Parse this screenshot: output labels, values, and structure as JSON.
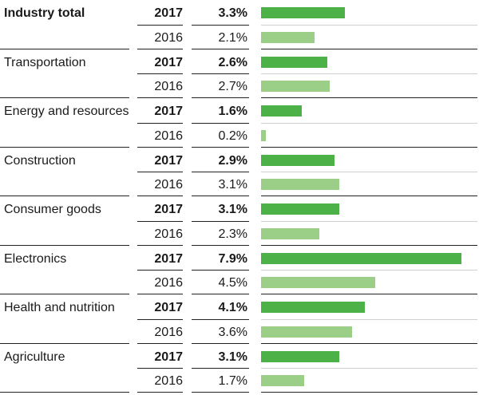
{
  "chart_data": {
    "type": "bar",
    "orientation": "horizontal",
    "title": "",
    "xlim": [
      0,
      8
    ],
    "rows": [
      {
        "category": "Industry total",
        "bold_category": true,
        "current": {
          "year": "2017",
          "label": "3.3%",
          "value": 3.3
        },
        "previous": {
          "year": "2016",
          "label": "2.1%",
          "value": 2.1
        }
      },
      {
        "category": "Transportation",
        "bold_category": false,
        "current": {
          "year": "2017",
          "label": "2.6%",
          "value": 2.6
        },
        "previous": {
          "year": "2016",
          "label": "2.7%",
          "value": 2.7
        }
      },
      {
        "category": "Energy and resources",
        "bold_category": false,
        "current": {
          "year": "2017",
          "label": "1.6%",
          "value": 1.6
        },
        "previous": {
          "year": "2016",
          "label": "0.2%",
          "value": 0.2
        }
      },
      {
        "category": "Construction",
        "bold_category": false,
        "current": {
          "year": "2017",
          "label": "2.9%",
          "value": 2.9
        },
        "previous": {
          "year": "2016",
          "label": "3.1%",
          "value": 3.1
        }
      },
      {
        "category": "Consumer goods",
        "bold_category": false,
        "current": {
          "year": "2017",
          "label": "3.1%",
          "value": 3.1
        },
        "previous": {
          "year": "2016",
          "label": "2.3%",
          "value": 2.3
        }
      },
      {
        "category": "Electronics",
        "bold_category": false,
        "current": {
          "year": "2017",
          "label": "7.9%",
          "value": 7.9
        },
        "previous": {
          "year": "2016",
          "label": "4.5%",
          "value": 4.5
        }
      },
      {
        "category": "Health and nutrition",
        "bold_category": false,
        "current": {
          "year": "2017",
          "label": "4.1%",
          "value": 4.1
        },
        "previous": {
          "year": "2016",
          "label": "3.6%",
          "value": 3.6
        }
      },
      {
        "category": "Agriculture",
        "bold_category": false,
        "current": {
          "year": "2017",
          "label": "3.1%",
          "value": 3.1
        },
        "previous": {
          "year": "2016",
          "label": "1.7%",
          "value": 1.7
        }
      }
    ],
    "colors": {
      "current": "#4cb146",
      "previous": "#9bcf87",
      "rule": "#222222",
      "rule_thin": "#cfcfcf"
    }
  }
}
